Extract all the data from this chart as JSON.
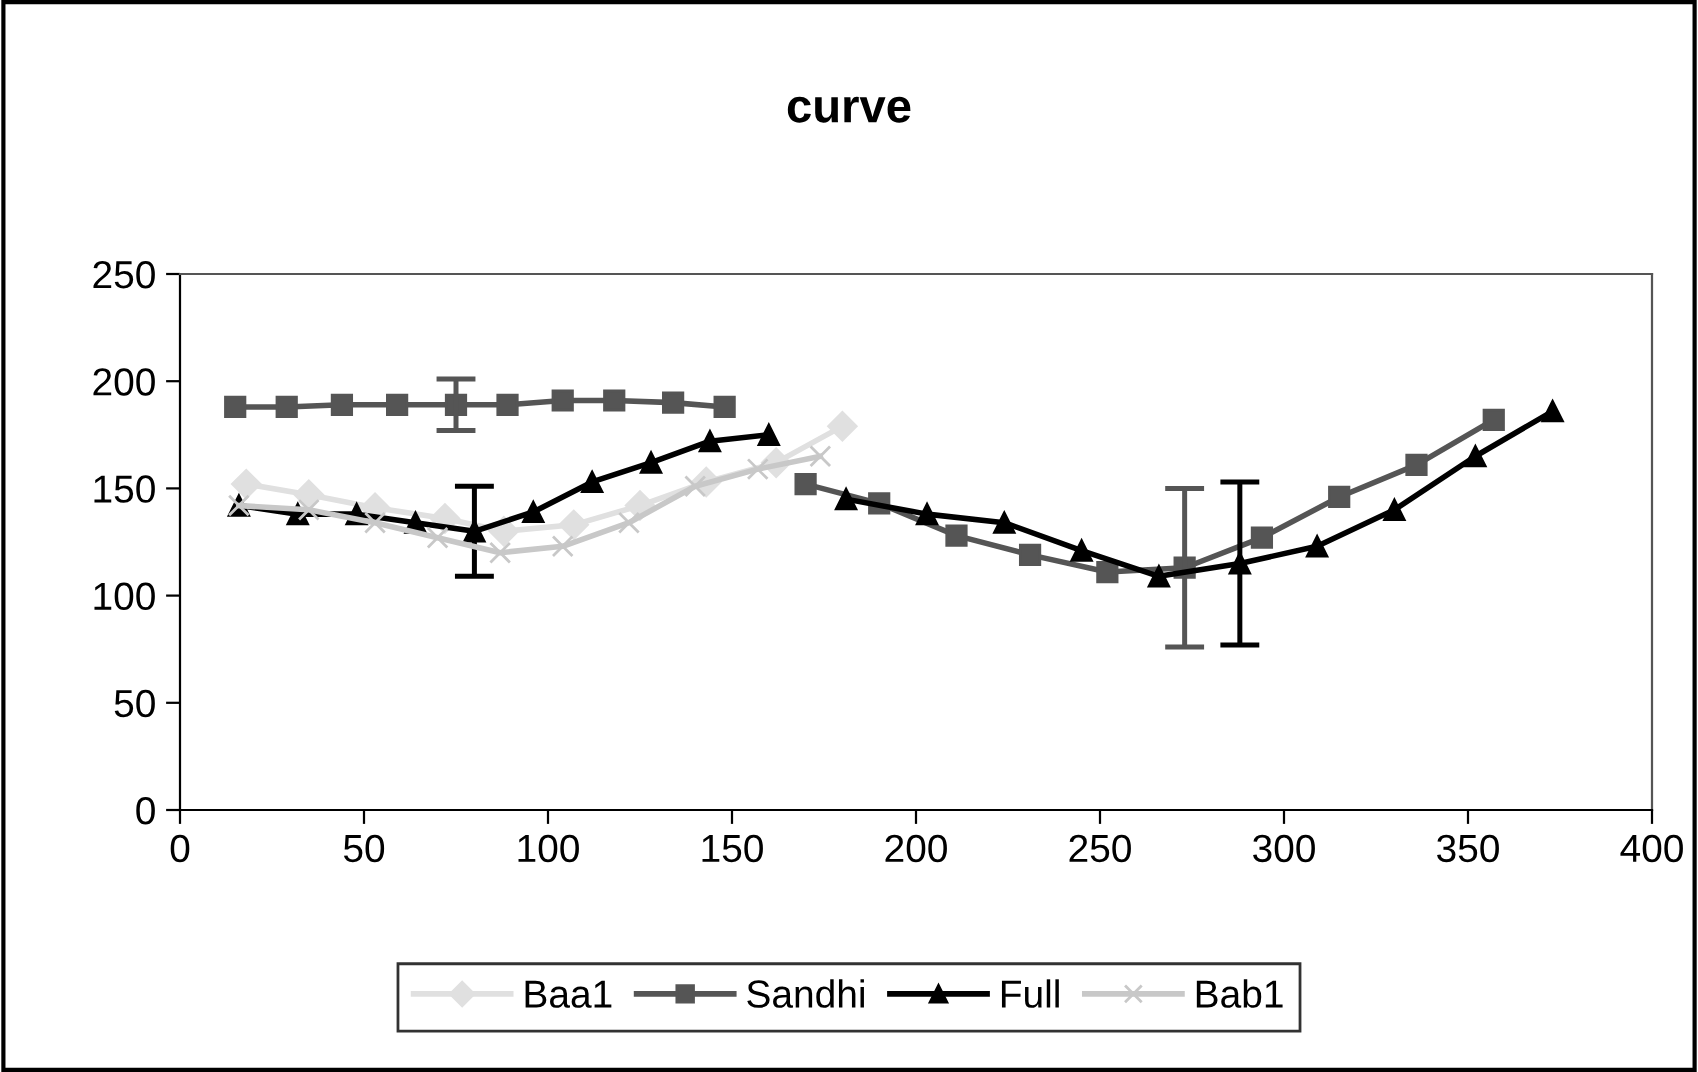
{
  "chart_data": {
    "type": "line",
    "title": "curve",
    "xlim": [
      0,
      400
    ],
    "xticks": [
      0,
      50,
      100,
      150,
      200,
      250,
      300,
      350,
      400
    ],
    "ylim": [
      0,
      250
    ],
    "yticks": [
      0,
      50,
      100,
      150,
      200,
      250
    ],
    "grid": false,
    "legend": "bottom",
    "series": [
      {
        "name": "Baa1",
        "color": "#e0e0e0",
        "marker": "diamond",
        "x": [
          18,
          35,
          53,
          72,
          88,
          107,
          125,
          143,
          162,
          180
        ],
        "values": [
          152,
          147,
          141,
          136,
          130,
          133,
          142,
          153,
          162,
          179
        ]
      },
      {
        "name": "Sandhi",
        "color": "#555555",
        "marker": "square",
        "x": [
          15,
          29,
          44,
          59,
          75,
          89,
          104,
          118,
          134,
          148,
          159,
          170,
          190,
          211,
          231,
          252,
          273,
          294,
          315,
          336,
          357
        ],
        "values": [
          188,
          188,
          189,
          189,
          189,
          189,
          191,
          191,
          190,
          188,
          null,
          152,
          143,
          128,
          119,
          111,
          113,
          127,
          146,
          161,
          182
        ],
        "errors": [
          null,
          null,
          null,
          null,
          12,
          null,
          null,
          null,
          null,
          null,
          null,
          null,
          null,
          null,
          null,
          null,
          37,
          null,
          null,
          null,
          null
        ]
      },
      {
        "name": "Full",
        "color": "#000000",
        "marker": "triangle",
        "x": [
          16,
          32,
          48,
          64,
          80,
          96,
          112,
          128,
          144,
          160,
          170,
          181,
          203,
          224,
          245,
          266,
          288,
          309,
          330,
          352,
          373
        ],
        "values": [
          142,
          138,
          138,
          134,
          130,
          139,
          153,
          162,
          172,
          175,
          null,
          145,
          138,
          134,
          121,
          109,
          115,
          123,
          140,
          165,
          186
        ],
        "errors": [
          null,
          null,
          null,
          null,
          21,
          null,
          null,
          null,
          null,
          null,
          null,
          null,
          null,
          null,
          null,
          null,
          38,
          null,
          null,
          null,
          null
        ]
      },
      {
        "name": "Bab1",
        "color": "#c8c8c8",
        "marker": "cross",
        "x": [
          16,
          35,
          53,
          70,
          87,
          104,
          122,
          140,
          157,
          174
        ],
        "values": [
          142,
          140,
          134,
          127,
          120,
          123,
          134,
          151,
          159,
          165
        ]
      }
    ]
  }
}
